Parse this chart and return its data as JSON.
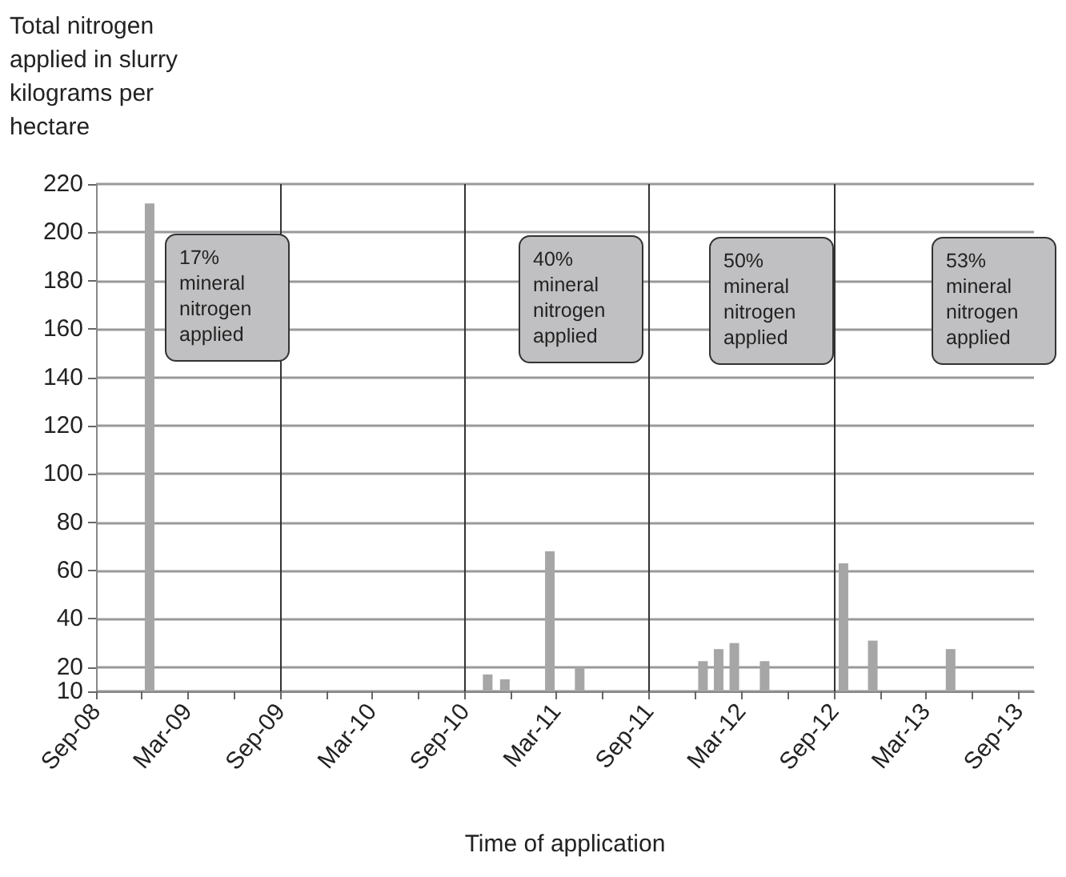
{
  "chart_data": {
    "type": "bar",
    "ylabel": "Total nitrogen applied in slurry kilograms per hectare",
    "xlabel": "Time of application",
    "x": [
      "2008-12-16",
      "2010-10-16",
      "2010-11-19",
      "2011-02-16",
      "2011-04-16",
      "2011-12-16",
      "2012-01-16",
      "2012-02-16",
      "2012-04-16",
      "2012-09-19",
      "2012-11-16",
      "2013-04-19"
    ],
    "values": [
      212,
      17,
      15,
      68,
      20,
      22.5,
      27.5,
      30,
      22.5,
      63,
      31,
      27.5
    ],
    "color": "#a6a6a6",
    "ylim": [
      10,
      220
    ],
    "yticks": [
      10,
      20,
      40,
      60,
      80,
      100,
      120,
      140,
      160,
      180,
      200,
      220
    ],
    "xlim": [
      "2008-09",
      "2013-10"
    ],
    "xticks": [
      {
        "value": "2008-09",
        "label": "Sep-08"
      },
      {
        "value": "2008-12",
        "label": null
      },
      {
        "value": "2009-03",
        "label": "Mar-09"
      },
      {
        "value": "2009-06",
        "label": null
      },
      {
        "value": "2009-09",
        "label": "Sep-09"
      },
      {
        "value": "2009-12",
        "label": null
      },
      {
        "value": "2010-03",
        "label": "Mar-10"
      },
      {
        "value": "2010-06",
        "label": null
      },
      {
        "value": "2010-09",
        "label": "Sep-10"
      },
      {
        "value": "2010-12",
        "label": null
      },
      {
        "value": "2011-03",
        "label": "Mar-11"
      },
      {
        "value": "2011-06",
        "label": null
      },
      {
        "value": "2011-09",
        "label": "Sep-11"
      },
      {
        "value": "2011-12",
        "label": null
      },
      {
        "value": "2012-03",
        "label": "Mar-12"
      },
      {
        "value": "2012-06",
        "label": null
      },
      {
        "value": "2012-09",
        "label": "Sep-12"
      },
      {
        "value": "2012-12",
        "label": null
      },
      {
        "value": "2013-03",
        "label": "Mar-13"
      },
      {
        "value": "2013-06",
        "label": null
      },
      {
        "value": "2013-09",
        "label": "Sep-13"
      }
    ],
    "grid": "y",
    "ref_lines": [
      {
        "axis": "x",
        "value": "2009-09",
        "color": "#333333"
      },
      {
        "axis": "x",
        "value": "2010-09",
        "color": "#333333"
      },
      {
        "axis": "x",
        "value": "2011-09",
        "color": "#333333"
      },
      {
        "axis": "x",
        "value": "2012-09",
        "color": "#333333"
      }
    ],
    "annotations": [
      "17% mineral nitrogen applied",
      "40% mineral nitrogen applied",
      "50% mineral nitrogen applied",
      "53% mineral nitrogen applied"
    ]
  }
}
